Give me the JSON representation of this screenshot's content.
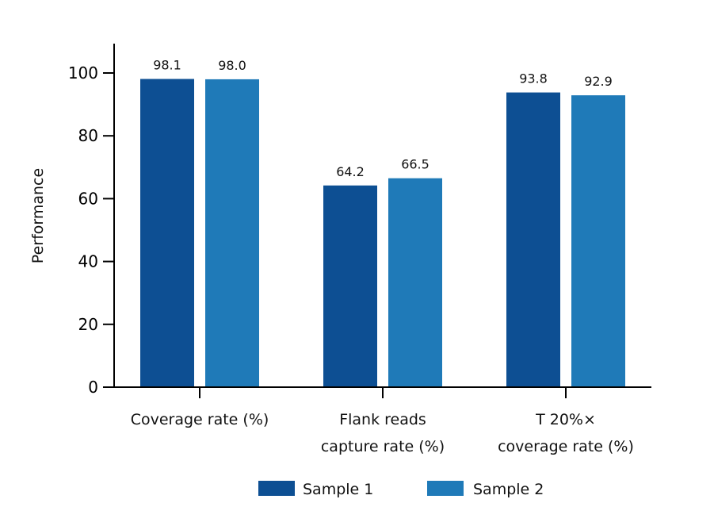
{
  "chart_data": {
    "type": "bar",
    "title": "",
    "xlabel": "",
    "ylabel": "Performance",
    "ylim": [
      0,
      110
    ],
    "yticks": [
      0,
      20,
      40,
      60,
      80,
      100
    ],
    "categories": [
      [
        "Coverage rate (%)"
      ],
      [
        "Flank reads",
        "capture rate (%)"
      ],
      [
        "T 20%×",
        "coverage rate (%)"
      ]
    ],
    "series": [
      {
        "name": "Sample 1",
        "color": "#0d4f93",
        "values": [
          98.1,
          64.2,
          93.8
        ]
      },
      {
        "name": "Sample 2",
        "color": "#1f7ab8",
        "values": [
          98.0,
          66.5,
          92.9
        ]
      }
    ],
    "data_labels": [
      [
        "98.1",
        "64.2",
        "93.8"
      ],
      [
        "98.0",
        "66.5",
        "92.9"
      ]
    ],
    "legend_position": "bottom",
    "grid": false
  }
}
